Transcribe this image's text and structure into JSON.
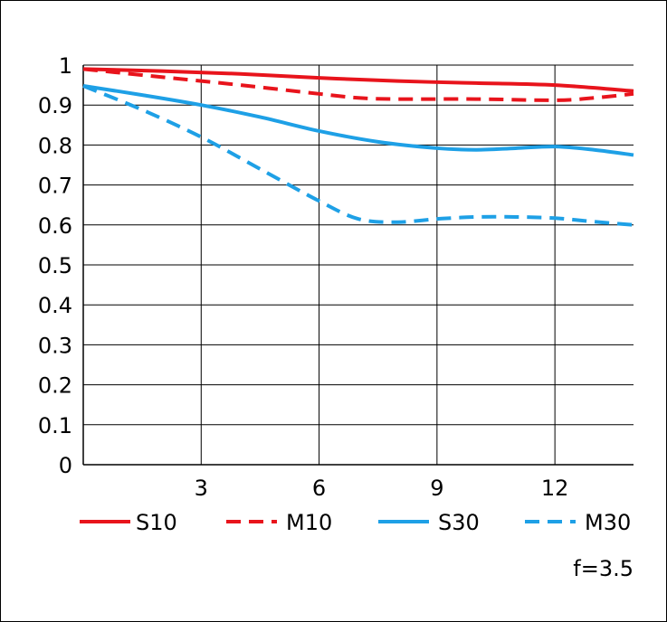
{
  "chart_data": {
    "type": "line",
    "xlabel": "",
    "ylabel": "",
    "xlim": [
      0,
      14
    ],
    "ylim": [
      0,
      1
    ],
    "x_ticks": [
      3,
      6,
      9,
      12
    ],
    "x_tick_labels": [
      "3",
      "6",
      "9",
      "12"
    ],
    "y_ticks": [
      0,
      0.1,
      0.2,
      0.3,
      0.4,
      0.5,
      0.6,
      0.7,
      0.8,
      0.9,
      1
    ],
    "y_tick_labels": [
      "0",
      "0.1",
      "0.2",
      "0.3",
      "0.4",
      "0.5",
      "0.6",
      "0.7",
      "0.8",
      "0.9",
      "1"
    ],
    "grid": true,
    "legend_position": "bottom",
    "annotation": "f=3.5",
    "series": [
      {
        "name": "S10",
        "color": "#e8141c",
        "dash": "solid",
        "x": [
          0,
          2,
          4,
          6,
          8,
          10,
          12,
          14
        ],
        "y": [
          0.99,
          0.985,
          0.978,
          0.968,
          0.96,
          0.955,
          0.95,
          0.935
        ]
      },
      {
        "name": "M10",
        "color": "#e8141c",
        "dash": "dashed",
        "x": [
          0,
          2,
          4,
          6,
          7,
          8,
          10,
          12,
          13,
          14
        ],
        "y": [
          0.99,
          0.97,
          0.95,
          0.928,
          0.918,
          0.915,
          0.915,
          0.912,
          0.918,
          0.928
        ]
      },
      {
        "name": "S30",
        "color": "#1ea0e6",
        "dash": "solid",
        "x": [
          0,
          1.5,
          3,
          4.5,
          6,
          7.5,
          9,
          10,
          11,
          12,
          13,
          14
        ],
        "y": [
          0.948,
          0.925,
          0.9,
          0.87,
          0.835,
          0.808,
          0.792,
          0.788,
          0.792,
          0.796,
          0.788,
          0.775
        ]
      },
      {
        "name": "M30",
        "color": "#1ea0e6",
        "dash": "dashed",
        "x": [
          0,
          1.5,
          3,
          4.5,
          6,
          7,
          8,
          9,
          10,
          11,
          12,
          13,
          14
        ],
        "y": [
          0.948,
          0.888,
          0.82,
          0.74,
          0.66,
          0.615,
          0.607,
          0.615,
          0.62,
          0.62,
          0.617,
          0.608,
          0.6
        ]
      }
    ]
  }
}
